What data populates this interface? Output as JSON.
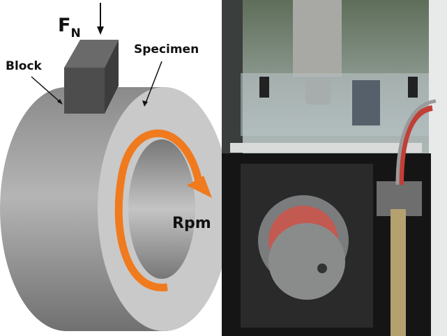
{
  "diagram": {
    "force_label": "F",
    "force_subscript": "N",
    "block_label": "Block",
    "specimen_label": "Specimen",
    "rotation_label": "Rpm",
    "colors": {
      "ring": "#9a9a9a",
      "face": "#c8c8c8",
      "block": "#555555",
      "arrow": "#f07a1e"
    }
  },
  "photo": {
    "description_icons": [
      "tribometer-photo"
    ]
  }
}
